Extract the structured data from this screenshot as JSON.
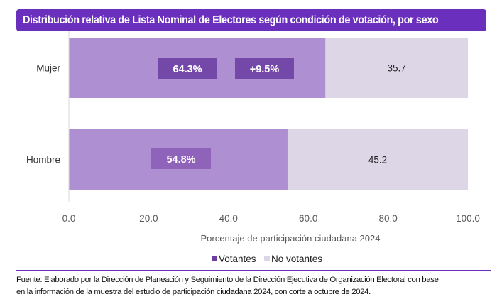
{
  "title": "Distribución relativa de Lista Nominal de Electores según condición de votación, por sexo",
  "chart_data": {
    "type": "bar",
    "orientation": "horizontal",
    "stacked": true,
    "title": "Distribución relativa de Lista Nominal de Electores según condición de votación, por sexo",
    "categories": [
      "Mujer",
      "Hombre"
    ],
    "series": [
      {
        "name": "Votantes",
        "values": [
          64.3,
          54.8
        ],
        "color": "#ae8fd1",
        "legend_color": "#6b3fa0"
      },
      {
        "name": "No votantes",
        "values": [
          35.7,
          45.2
        ],
        "color": "#ddd6e6",
        "legend_color": "#ddd6e6"
      }
    ],
    "data_labels": {
      "Votantes": [
        "64.3%",
        "54.8%"
      ],
      "No votantes": [
        "35.7",
        "45.2"
      ]
    },
    "annotations": [
      {
        "category": "Mujer",
        "text": "+9.5%",
        "color": "#7448a8"
      }
    ],
    "label_box_colors": [
      "#7448a8",
      "#8e63b9"
    ],
    "xlabel": "Porcentaje de participación ciudadana 2024",
    "ylabel": "",
    "xlim": [
      0,
      100
    ],
    "xticks": [
      "0.0",
      "20.0",
      "40.0",
      "60.0",
      "80.0",
      "100.0"
    ],
    "xtick_values": [
      0,
      20,
      40,
      60,
      80,
      100
    ],
    "grid": false,
    "legend": {
      "position": "bottom",
      "entries": [
        "Votantes",
        "No votantes"
      ]
    }
  },
  "footnote": {
    "line1": "Fuente: Elaborado por la Dirección de Planeación y Seguimiento de la Dirección Ejecutiva de Organización Electoral con base",
    "line2": "en la información de la muestra del estudio de participación ciudadana 2024, con corte a octubre de 2024."
  },
  "colors": {
    "accent": "#6a2fbd"
  }
}
